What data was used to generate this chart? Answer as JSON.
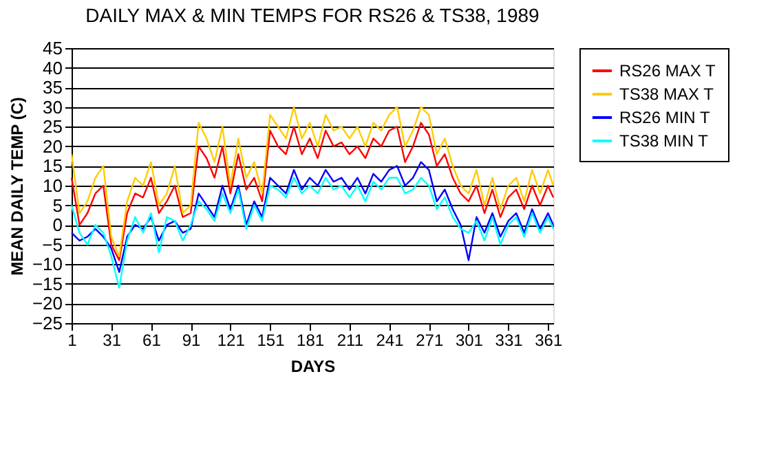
{
  "chart_data": {
    "type": "line",
    "title": "DAILY MAX & MIN TEMPS FOR RS26 & TS38, 1989",
    "xlabel": "DAYS",
    "ylabel": "MEAN DAILY TEMP (C)",
    "x": [
      1,
      7,
      13,
      19,
      25,
      31,
      37,
      43,
      49,
      55,
      61,
      67,
      73,
      79,
      85,
      91,
      97,
      103,
      109,
      115,
      121,
      127,
      133,
      139,
      145,
      151,
      157,
      163,
      169,
      175,
      181,
      187,
      193,
      199,
      205,
      211,
      217,
      223,
      229,
      235,
      241,
      247,
      253,
      259,
      265,
      271,
      277,
      283,
      289,
      295,
      301,
      307,
      313,
      319,
      325,
      331,
      337,
      343,
      349,
      355,
      361,
      365
    ],
    "series": [
      {
        "name": "RS26 MAX T",
        "color": "#ff0000",
        "values": [
          12,
          0,
          3,
          8,
          10,
          -5,
          -9,
          3,
          8,
          7,
          12,
          3,
          6,
          10,
          2,
          3,
          20,
          17,
          12,
          20,
          8,
          18,
          9,
          12,
          6,
          24,
          20,
          18,
          25,
          18,
          22,
          17,
          24,
          20,
          21,
          18,
          20,
          17,
          22,
          20,
          24,
          25,
          16,
          20,
          26,
          23,
          15,
          18,
          12,
          8,
          6,
          10,
          3,
          9,
          2,
          7,
          9,
          4,
          10,
          5,
          10,
          7
        ]
      },
      {
        "name": "TS38 MAX T",
        "color": "#ffcc00",
        "values": [
          18,
          3,
          6,
          12,
          15,
          -3,
          -8,
          6,
          12,
          10,
          16,
          5,
          8,
          15,
          3,
          5,
          26,
          22,
          16,
          25,
          10,
          22,
          12,
          16,
          8,
          28,
          25,
          22,
          30,
          22,
          26,
          20,
          28,
          24,
          25,
          22,
          25,
          20,
          26,
          24,
          28,
          30,
          20,
          24,
          30,
          28,
          18,
          22,
          15,
          10,
          8,
          14,
          5,
          12,
          4,
          10,
          12,
          6,
          14,
          8,
          14,
          10
        ]
      },
      {
        "name": "RS26 MIN T",
        "color": "#0000ff",
        "values": [
          -2,
          -4,
          -3,
          -1,
          -3,
          -6,
          -12,
          -3,
          0,
          -1,
          2,
          -4,
          0,
          1,
          -2,
          -1,
          8,
          5,
          2,
          10,
          4,
          10,
          0,
          6,
          2,
          12,
          10,
          8,
          14,
          9,
          12,
          10,
          14,
          11,
          12,
          9,
          12,
          8,
          13,
          11,
          14,
          15,
          10,
          12,
          16,
          14,
          6,
          9,
          4,
          0,
          -9,
          2,
          -2,
          3,
          -3,
          1,
          3,
          -2,
          4,
          -1,
          3,
          0
        ]
      },
      {
        "name": "TS38 MIN T",
        "color": "#00ffff",
        "values": [
          5,
          -2,
          -5,
          0,
          -2,
          -8,
          -16,
          -4,
          2,
          -2,
          3,
          -7,
          2,
          1,
          -4,
          0,
          6,
          4,
          1,
          8,
          3,
          9,
          -1,
          5,
          1,
          10,
          9,
          7,
          12,
          8,
          10,
          8,
          12,
          9,
          10,
          7,
          10,
          6,
          11,
          9,
          12,
          12,
          8,
          9,
          12,
          10,
          4,
          7,
          2,
          -1,
          -2,
          1,
          -4,
          2,
          -5,
          0,
          2,
          -3,
          3,
          -2,
          2,
          -1
        ]
      }
    ],
    "xlim": [
      1,
      365
    ],
    "xticks": [
      1,
      31,
      61,
      91,
      121,
      151,
      181,
      211,
      241,
      271,
      301,
      331,
      361
    ],
    "ylim": [
      -25,
      45
    ],
    "yticks": [
      -25,
      -20,
      -15,
      -10,
      -5,
      0,
      5,
      10,
      15,
      20,
      25,
      30,
      35,
      40,
      45
    ],
    "grid": "y",
    "legend": "right",
    "marker": "none",
    "line_style": "solid"
  }
}
